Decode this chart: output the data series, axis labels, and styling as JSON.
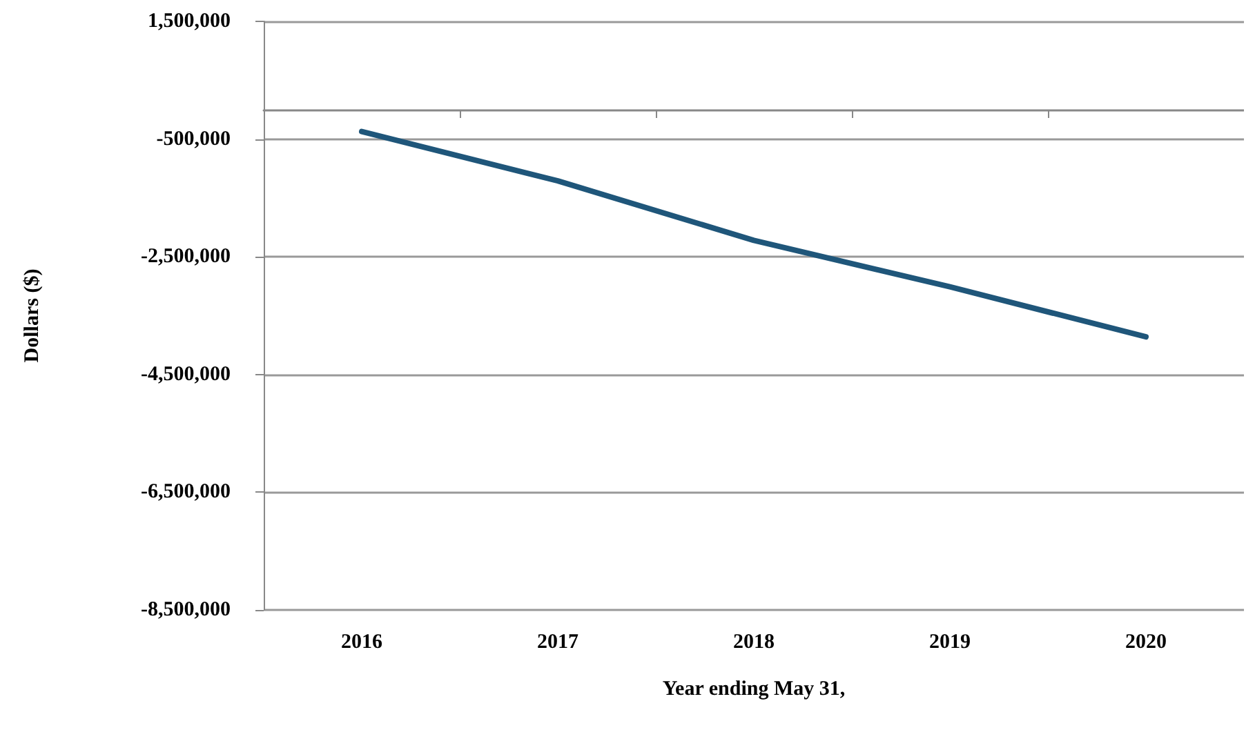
{
  "chart_data": {
    "type": "line",
    "xlabel": "Year ending May 31,",
    "ylabel": "Dollars ($)",
    "categories": [
      "2016",
      "2017",
      "2018",
      "2019",
      "2020"
    ],
    "series": [
      {
        "color": "#1f567a",
        "values": [
          -370000,
          -1210000,
          -2220000,
          -3010000,
          -3860000
        ]
      }
    ],
    "ylim": [
      -8500000,
      1500000
    ],
    "yticks": [
      {
        "value": -8500000,
        "label": "-8,500,000"
      },
      {
        "value": -6500000,
        "label": "-6,500,000"
      },
      {
        "value": -4500000,
        "label": "-4,500,000"
      },
      {
        "value": -2500000,
        "label": "-2,500,000"
      },
      {
        "value": -500000,
        "label": "-500,000"
      },
      {
        "value": 1500000,
        "label": "1,500,000"
      }
    ],
    "grid": "y",
    "marker": "none"
  }
}
